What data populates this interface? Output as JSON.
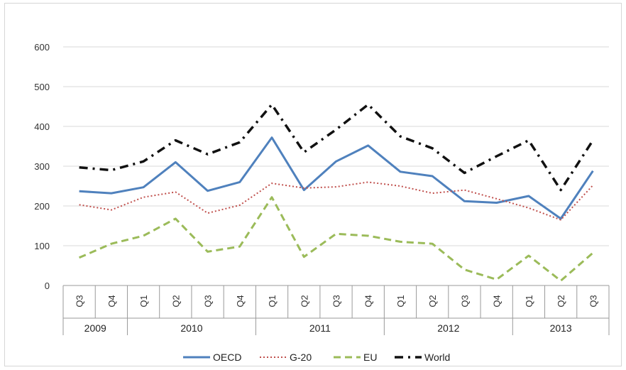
{
  "chart_data": {
    "type": "line",
    "title": "",
    "xlabel": "",
    "ylabel": "",
    "ylim": [
      0,
      600
    ],
    "yticks": [
      "0",
      "100",
      "200",
      "300",
      "400",
      "500",
      "600"
    ],
    "grid": "horizontal",
    "legend_position": "bottom",
    "categories": [
      "Q3",
      "Q4",
      "Q1",
      "Q2",
      "Q3",
      "Q4",
      "Q1",
      "Q2",
      "Q3",
      "Q4",
      "Q1",
      "Q2",
      "Q3",
      "Q4",
      "Q1",
      "Q2",
      "Q3"
    ],
    "years": [
      {
        "label": "2009",
        "start": 0,
        "end": 1
      },
      {
        "label": "2010",
        "start": 2,
        "end": 5
      },
      {
        "label": "2011",
        "start": 6,
        "end": 9
      },
      {
        "label": "2012",
        "start": 10,
        "end": 13
      },
      {
        "label": "2013",
        "start": 14,
        "end": 16
      }
    ],
    "series": [
      {
        "name": "OECD",
        "color": "#4f81bd",
        "style": "solid",
        "values": [
          237,
          232,
          247,
          310,
          238,
          260,
          372,
          240,
          312,
          352,
          286,
          275,
          212,
          208,
          225,
          168,
          288
        ]
      },
      {
        "name": "G-20",
        "color": "#c0504d",
        "style": "dotted",
        "values": [
          203,
          190,
          222,
          235,
          182,
          202,
          257,
          245,
          248,
          260,
          250,
          232,
          240,
          218,
          195,
          165,
          252
        ]
      },
      {
        "name": "EU",
        "color": "#9bbb59",
        "style": "dashed",
        "values": [
          70,
          105,
          125,
          168,
          85,
          98,
          222,
          72,
          130,
          125,
          110,
          105,
          40,
          15,
          75,
          12,
          82
        ]
      },
      {
        "name": "World",
        "color": "#111111",
        "style": "dashdot",
        "values": [
          297,
          290,
          312,
          365,
          330,
          360,
          455,
          335,
          392,
          455,
          375,
          345,
          283,
          325,
          365,
          240,
          365
        ]
      }
    ]
  }
}
